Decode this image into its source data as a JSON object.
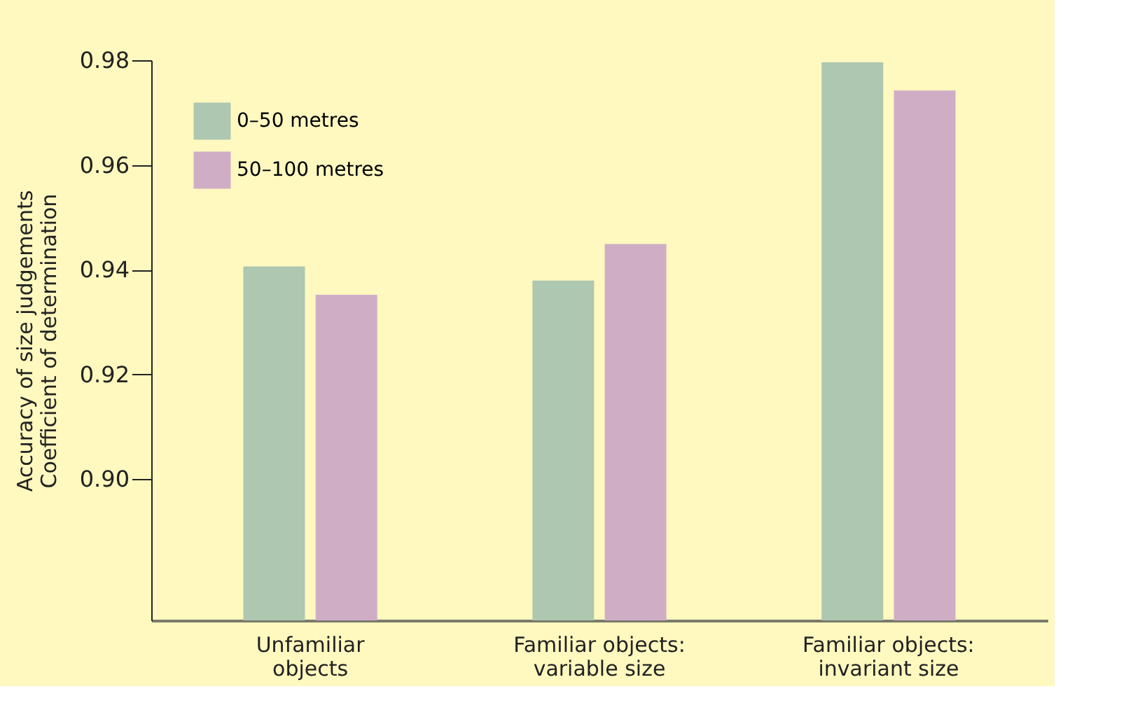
{
  "chart_data": {
    "type": "bar",
    "categories": [
      "Unfamiliar\nobjects",
      "Familiar objects:\nvariable size",
      "Familiar objects:\ninvariant size"
    ],
    "ylabel": "Accuracy of size judgements\nCoefficient of determination",
    "series": [
      {
        "name": "0–50 metres",
        "color": "#adc7b0",
        "values": [
          0.9406,
          0.9379,
          0.9796
        ]
      },
      {
        "name": "50–100 metres",
        "color": "#cfadc5",
        "values": [
          0.9352,
          0.9449,
          0.9742
        ]
      }
    ],
    "ylim": [
      0.873,
      0.98
    ],
    "yticks": [
      {
        "value": 0.9,
        "label": "0.90"
      },
      0.92,
      0.94,
      0.96,
      0.98
    ],
    "legend": "top left",
    "grid": false
  }
}
